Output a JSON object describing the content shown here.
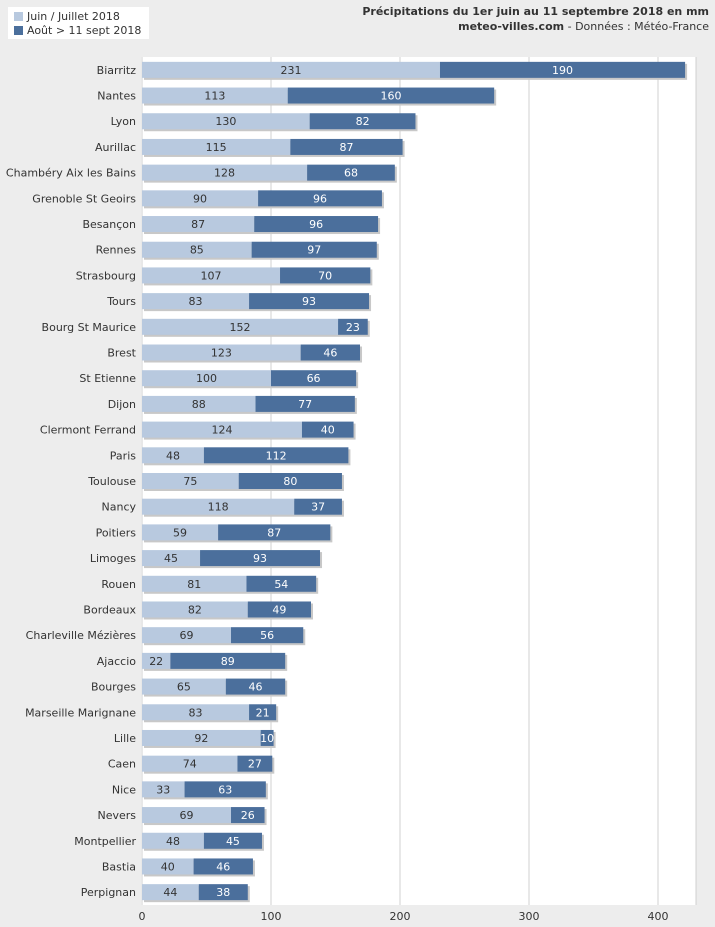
{
  "header": {
    "title": "Précipitations du 1er juin au 11 septembre 2018 en mm",
    "site": "meteo-villes.com",
    "source": " - Données : Météo-France"
  },
  "colors": {
    "series1": "#b8c9df",
    "series2": "#4b6f9c",
    "background": "#ededed",
    "plot": "#ffffff",
    "grid": "#d0d0d0",
    "text": "#333333"
  },
  "chart_data": {
    "type": "bar",
    "orientation": "horizontal",
    "stacked": true,
    "title": "Précipitations du 1er juin au 11 septembre 2018 en mm",
    "categories": [
      "Biarritz",
      "Nantes",
      "Lyon",
      "Aurillac",
      "Chambéry Aix les Bains",
      "Grenoble St Geoirs",
      "Besançon",
      "Rennes",
      "Strasbourg",
      "Tours",
      "Bourg St Maurice",
      "Brest",
      "St Etienne",
      "Dijon",
      "Clermont Ferrand",
      "Paris",
      "Toulouse",
      "Nancy",
      "Poitiers",
      "Limoges",
      "Rouen",
      "Bordeaux",
      "Charleville Mézières",
      "Ajaccio",
      "Bourges",
      "Marseille Marignane",
      "Lille",
      "Caen",
      "Nice",
      "Nevers",
      "Montpellier",
      "Bastia",
      "Perpignan"
    ],
    "series": [
      {
        "name": "Juin / Juillet 2018",
        "values": [
          231,
          113,
          130,
          115,
          128,
          90,
          87,
          85,
          107,
          83,
          152,
          123,
          100,
          88,
          124,
          48,
          75,
          118,
          59,
          45,
          81,
          82,
          69,
          22,
          65,
          83,
          92,
          74,
          33,
          69,
          48,
          40,
          44
        ]
      },
      {
        "name": "Août > 11 sept 2018",
        "values": [
          190,
          160,
          82,
          87,
          68,
          96,
          96,
          97,
          70,
          93,
          23,
          46,
          66,
          77,
          40,
          112,
          80,
          37,
          87,
          93,
          54,
          49,
          56,
          89,
          46,
          21,
          10,
          27,
          63,
          26,
          45,
          46,
          38
        ]
      }
    ],
    "xlim": [
      0,
      430
    ],
    "xticks": [
      0,
      100,
      200,
      300,
      400
    ],
    "grid": true,
    "legend_position": "top-left"
  }
}
